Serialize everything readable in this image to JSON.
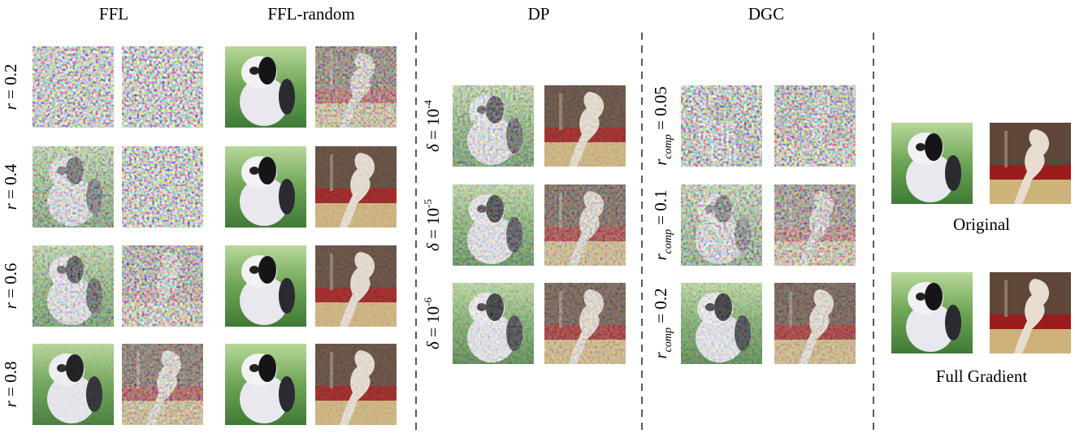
{
  "columns": [
    {
      "title": "FFL",
      "rows": [
        {
          "symbol": "r",
          "rest": " = 0.2"
        },
        {
          "symbol": "r",
          "rest": " = 0.4"
        },
        {
          "symbol": "r",
          "rest": " = 0.6"
        },
        {
          "symbol": "r",
          "rest": " = 0.8"
        }
      ]
    },
    {
      "title": "FFL-random"
    },
    {
      "title": "DP",
      "rows": [
        {
          "symbol": "δ",
          "rest": " = 10",
          "sup": "-4"
        },
        {
          "symbol": "δ",
          "rest": " = 10",
          "sup": "-5"
        },
        {
          "symbol": "δ",
          "rest": " = 10",
          "sup": "-6"
        }
      ]
    },
    {
      "title": "DGC",
      "rows": [
        {
          "symbol": "r",
          "sub": "comp",
          "rest": " = 0.05"
        },
        {
          "symbol": "r",
          "sub": "comp",
          "rest": " = 0.1"
        },
        {
          "symbol": "r",
          "sub": "comp",
          "rest": " = 0.2"
        }
      ]
    }
  ],
  "reference": [
    "Original",
    "Full Gradient"
  ]
}
